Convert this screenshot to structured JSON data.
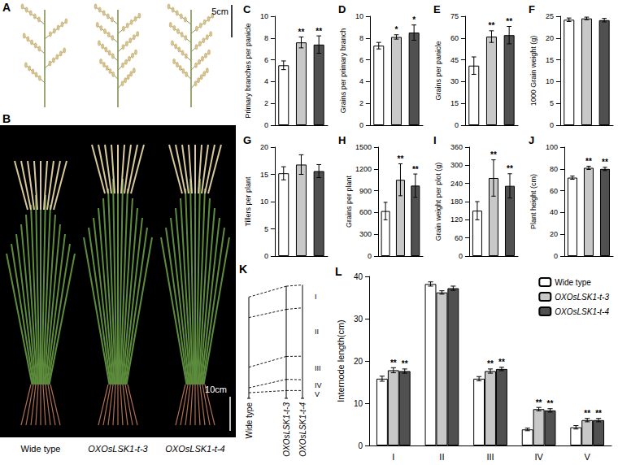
{
  "panels": {
    "A": {
      "label": "A",
      "scale_bar": "5cm"
    },
    "B": {
      "label": "B",
      "scale_bar": "10cm",
      "labels": [
        "Wide type",
        "OXOsLSK1-t-3",
        "OXOsLSK1-t-4"
      ]
    },
    "K": {
      "label": "K",
      "labels": [
        "Wide type",
        "OXOsLSK1-t-3",
        "OXOsLSK1-t-4"
      ]
    }
  },
  "chart_data": [
    {
      "type": "bar",
      "title": "C",
      "y_label": "Primary branches per panicle",
      "categories": [
        "Wide type",
        "OXOsLSK1-t-3",
        "OXOsLSK1-t-4"
      ],
      "values": [
        5.5,
        7.6,
        7.4
      ],
      "errors": [
        0.4,
        0.5,
        0.8
      ],
      "significance": [
        null,
        "**",
        "**"
      ],
      "colors": [
        "#ffffff",
        "#c8c8c8",
        "#505050"
      ],
      "ylim": [
        0,
        10
      ],
      "yticks": [
        0,
        2,
        4,
        6,
        8,
        10
      ],
      "tick_labels": "y",
      "grid": false
    },
    {
      "type": "bar",
      "title": "D",
      "y_label": "Grains per primary branch",
      "categories": [
        "Wide type",
        "OXOsLSK1-t-3",
        "OXOsLSK1-t-4"
      ],
      "values": [
        7.3,
        8.1,
        8.5
      ],
      "errors": [
        0.3,
        0.2,
        0.7
      ],
      "significance": [
        null,
        "*",
        "*"
      ],
      "colors": [
        "#ffffff",
        "#c8c8c8",
        "#505050"
      ],
      "ylim": [
        0,
        10
      ],
      "yticks": [
        0,
        2,
        4,
        6,
        8,
        10
      ],
      "tick_labels": "y",
      "grid": false
    },
    {
      "type": "bar",
      "title": "E",
      "y_label": "Grains per panicle",
      "categories": [
        "Wide type",
        "OXOsLSK1-t-3",
        "OXOsLSK1-t-4"
      ],
      "values": [
        41,
        61,
        62
      ],
      "errors": [
        6,
        4,
        6
      ],
      "significance": [
        null,
        "**",
        "**"
      ],
      "colors": [
        "#ffffff",
        "#c8c8c8",
        "#505050"
      ],
      "ylim": [
        0,
        75
      ],
      "yticks": [
        0,
        15,
        30,
        45,
        60,
        75
      ],
      "tick_labels": "y",
      "grid": false
    },
    {
      "type": "bar",
      "title": "F",
      "y_label": "1000 Grain weight (g)",
      "categories": [
        "Wide type",
        "OXOsLSK1-t-3",
        "OXOsLSK1-t-4"
      ],
      "values": [
        24.2,
        24.5,
        24.1
      ],
      "errors": [
        0.4,
        0.3,
        0.4
      ],
      "colors": [
        "#ffffff",
        "#c8c8c8",
        "#505050"
      ],
      "ylim": [
        0,
        25
      ],
      "yticks": [
        0,
        5,
        10,
        15,
        20,
        25
      ],
      "tick_labels": "y",
      "grid": false
    },
    {
      "type": "bar",
      "title": "G",
      "y_label": "Tillers per plant",
      "categories": [
        "Wide type",
        "OXOsLSK1-t-3",
        "OXOsLSK1-t-4"
      ],
      "values": [
        15.2,
        16.8,
        15.6
      ],
      "errors": [
        1.2,
        1.8,
        1.2
      ],
      "colors": [
        "#ffffff",
        "#c8c8c8",
        "#505050"
      ],
      "ylim": [
        0,
        20
      ],
      "yticks": [
        0,
        5,
        10,
        15,
        20
      ],
      "tick_labels": "y",
      "grid": false
    },
    {
      "type": "bar",
      "title": "H",
      "y_label": "Grains per plant",
      "categories": [
        "Wide type",
        "OXOsLSK1-t-3",
        "OXOsLSK1-t-4"
      ],
      "values": [
        620,
        1050,
        970
      ],
      "errors": [
        120,
        220,
        160
      ],
      "significance": [
        null,
        "**",
        "**"
      ],
      "colors": [
        "#ffffff",
        "#c8c8c8",
        "#505050"
      ],
      "ylim": [
        0,
        1500
      ],
      "yticks": [
        0,
        300,
        600,
        900,
        1200,
        1500
      ],
      "tick_labels": "y",
      "grid": false
    },
    {
      "type": "bar",
      "title": "I",
      "y_label": "Grain weight per plot (g)",
      "categories": [
        "Wide type",
        "OXOsLSK1-t-3",
        "OXOsLSK1-t-4"
      ],
      "values": [
        150,
        258,
        232
      ],
      "errors": [
        30,
        60,
        40
      ],
      "significance": [
        null,
        "**",
        "**"
      ],
      "colors": [
        "#ffffff",
        "#c8c8c8",
        "#505050"
      ],
      "ylim": [
        0,
        360
      ],
      "yticks": [
        0,
        60,
        120,
        180,
        240,
        300,
        360
      ],
      "tick_labels": "y",
      "grid": false
    },
    {
      "type": "bar",
      "title": "J",
      "y_label": "Plant height (cm)",
      "categories": [
        "Wide type",
        "OXOsLSK1-t-3",
        "OXOsLSK1-t-4"
      ],
      "values": [
        72,
        81,
        80
      ],
      "errors": [
        1.5,
        1.5,
        1.5
      ],
      "significance": [
        null,
        "**",
        "**"
      ],
      "colors": [
        "#ffffff",
        "#c8c8c8",
        "#505050"
      ],
      "ylim": [
        0,
        100
      ],
      "yticks": [
        0,
        20,
        40,
        60,
        80,
        100
      ],
      "tick_labels": "y",
      "grid": false
    },
    {
      "type": "bar",
      "title": "L",
      "y_label": "Internode length(cm)",
      "categories": [
        "I",
        "II",
        "III",
        "IV",
        "V"
      ],
      "series": [
        {
          "name": "Wide type",
          "color": "#ffffff",
          "values": [
            15.8,
            38.2,
            15.8,
            3.8,
            4.3
          ],
          "errors": [
            0.6,
            0.5,
            0.5,
            0.3,
            0.4
          ],
          "significance": [
            null,
            null,
            null,
            null,
            null
          ]
        },
        {
          "name": "OXOsLSK1-t-3",
          "color": "#c8c8c8",
          "values": [
            17.8,
            36.2,
            17.6,
            8.6,
            6.0
          ],
          "errors": [
            0.6,
            0.4,
            0.5,
            0.4,
            0.4
          ],
          "significance": [
            "**",
            null,
            "**",
            "**",
            "**"
          ]
        },
        {
          "name": "OXOsLSK1-t-4",
          "color": "#505050",
          "values": [
            17.6,
            37.2,
            18.1,
            8.3,
            6.0
          ],
          "errors": [
            0.5,
            0.5,
            0.4,
            0.4,
            0.4
          ],
          "significance": [
            "**",
            null,
            "**",
            "**",
            "**"
          ]
        }
      ],
      "ylim": [
        0,
        40
      ],
      "yticks": [
        0,
        10,
        20,
        30,
        40
      ],
      "legend": "top-right",
      "grid": false
    }
  ]
}
